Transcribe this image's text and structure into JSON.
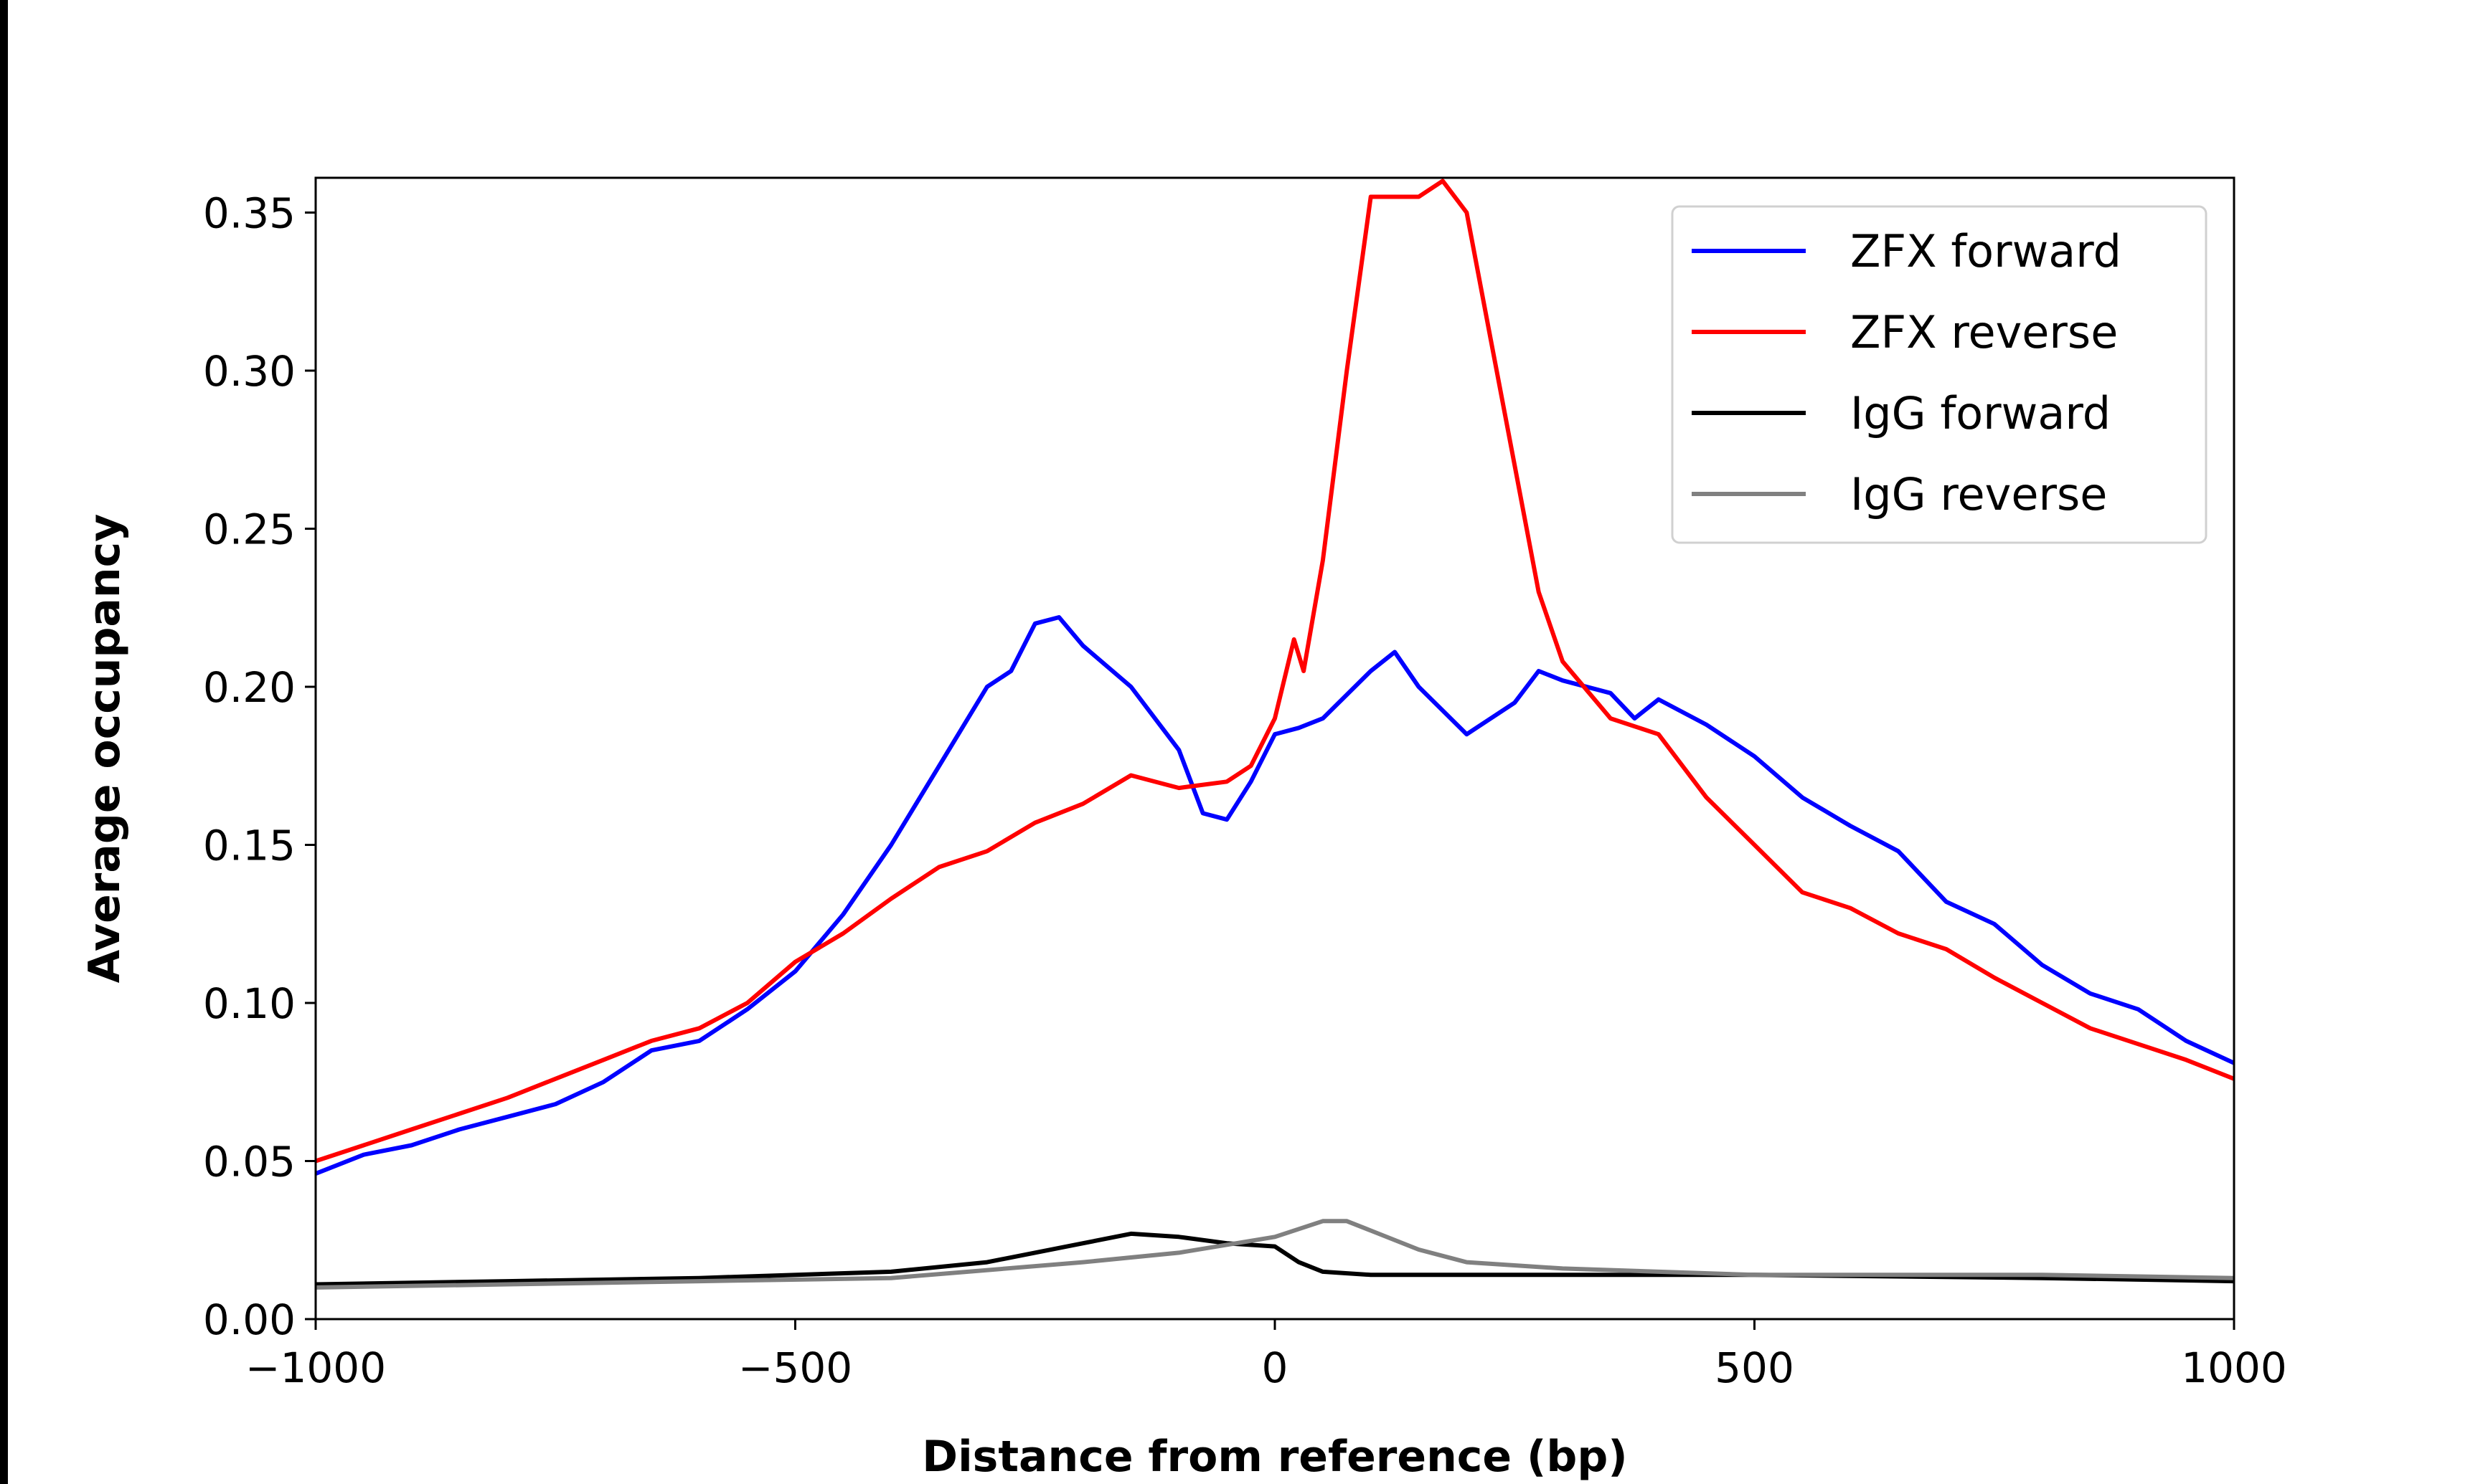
{
  "chart_data": {
    "type": "line",
    "title": "",
    "xlabel": "Distance from reference (bp)",
    "ylabel": "Average occupancy",
    "xlim": [
      -1000,
      1000
    ],
    "ylim": [
      0,
      0.361
    ],
    "xticks": [
      -1000,
      -500,
      0,
      500,
      1000
    ],
    "xtick_labels": [
      "−1000",
      "−500",
      "0",
      "500",
      "1000"
    ],
    "yticks": [
      0,
      0.05,
      0.1,
      0.15,
      0.2,
      0.25,
      0.3,
      0.35
    ],
    "ytick_labels": [
      "0.00",
      "0.05",
      "0.10",
      "0.15",
      "0.20",
      "0.25",
      "0.30",
      "0.35"
    ],
    "grid": false,
    "legend_position": "top-right",
    "series": [
      {
        "name": "ZFX forward",
        "color": "#0000ff",
        "x": [
          -1000,
          -950,
          -900,
          -850,
          -800,
          -750,
          -700,
          -650,
          -600,
          -550,
          -500,
          -450,
          -400,
          -350,
          -300,
          -275,
          -250,
          -225,
          -200,
          -150,
          -100,
          -75,
          -50,
          -25,
          0,
          25,
          50,
          100,
          125,
          150,
          200,
          250,
          275,
          300,
          350,
          375,
          400,
          450,
          500,
          550,
          600,
          650,
          700,
          750,
          800,
          850,
          900,
          950,
          1000
        ],
        "y": [
          0.046,
          0.052,
          0.055,
          0.06,
          0.064,
          0.068,
          0.075,
          0.085,
          0.088,
          0.098,
          0.11,
          0.128,
          0.15,
          0.175,
          0.2,
          0.205,
          0.22,
          0.222,
          0.213,
          0.2,
          0.18,
          0.16,
          0.158,
          0.17,
          0.185,
          0.187,
          0.19,
          0.205,
          0.211,
          0.2,
          0.185,
          0.195,
          0.205,
          0.202,
          0.198,
          0.19,
          0.196,
          0.188,
          0.178,
          0.165,
          0.156,
          0.148,
          0.132,
          0.125,
          0.112,
          0.103,
          0.098,
          0.088,
          0.081
        ]
      },
      {
        "name": "ZFX reverse",
        "color": "#ff0000",
        "x": [
          -1000,
          -950,
          -900,
          -850,
          -800,
          -750,
          -700,
          -650,
          -600,
          -550,
          -500,
          -450,
          -400,
          -350,
          -300,
          -250,
          -200,
          -150,
          -100,
          -50,
          -25,
          0,
          20,
          30,
          50,
          75,
          100,
          150,
          175,
          200,
          225,
          250,
          275,
          300,
          350,
          400,
          450,
          500,
          550,
          600,
          650,
          700,
          750,
          800,
          850,
          900,
          950,
          1000
        ],
        "y": [
          0.05,
          0.055,
          0.06,
          0.065,
          0.07,
          0.076,
          0.082,
          0.088,
          0.092,
          0.1,
          0.113,
          0.122,
          0.133,
          0.143,
          0.148,
          0.157,
          0.163,
          0.172,
          0.168,
          0.17,
          0.175,
          0.19,
          0.215,
          0.205,
          0.24,
          0.3,
          0.355,
          0.355,
          0.36,
          0.35,
          0.31,
          0.27,
          0.23,
          0.208,
          0.19,
          0.185,
          0.165,
          0.15,
          0.135,
          0.13,
          0.122,
          0.117,
          0.108,
          0.1,
          0.092,
          0.087,
          0.082,
          0.076
        ]
      },
      {
        "name": "IgG forward",
        "color": "#000000",
        "x": [
          -1000,
          -800,
          -600,
          -400,
          -300,
          -200,
          -150,
          -100,
          -50,
          0,
          25,
          50,
          100,
          200,
          500,
          800,
          1000
        ],
        "y": [
          0.011,
          0.012,
          0.013,
          0.015,
          0.018,
          0.024,
          0.027,
          0.026,
          0.024,
          0.023,
          0.018,
          0.015,
          0.014,
          0.014,
          0.014,
          0.013,
          0.012
        ]
      },
      {
        "name": "IgG reverse",
        "color": "#808080",
        "x": [
          -1000,
          -800,
          -600,
          -400,
          -200,
          -100,
          0,
          50,
          75,
          100,
          150,
          200,
          300,
          500,
          800,
          1000
        ],
        "y": [
          0.01,
          0.011,
          0.012,
          0.013,
          0.018,
          0.021,
          0.026,
          0.031,
          0.031,
          0.028,
          0.022,
          0.018,
          0.016,
          0.014,
          0.014,
          0.013
        ]
      }
    ]
  }
}
